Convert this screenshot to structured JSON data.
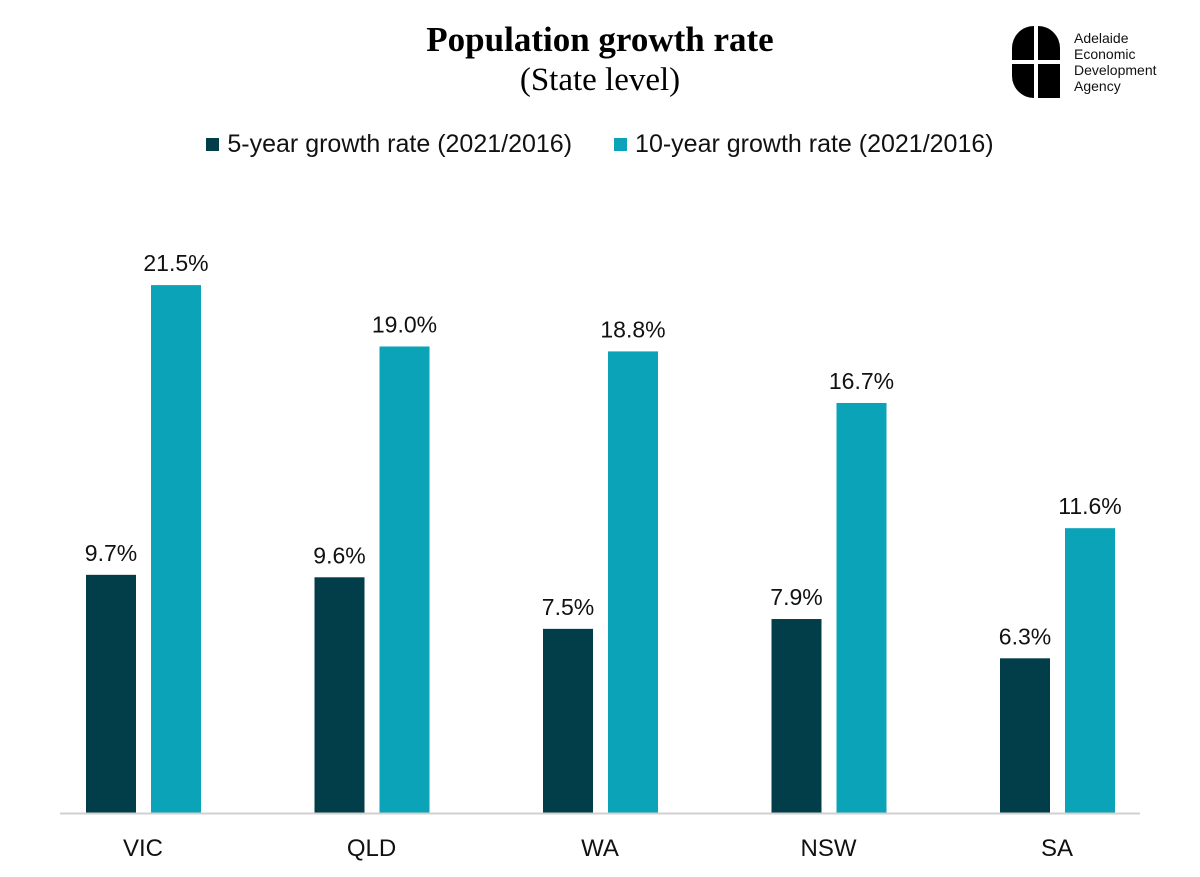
{
  "logo": {
    "lines": [
      "Adelaide",
      "Economic",
      "Development",
      "Agency"
    ]
  },
  "chart_data": {
    "type": "bar",
    "title": "Population growth rate",
    "subtitle": "(State level)",
    "categories": [
      "VIC",
      "QLD",
      "WA",
      "NSW",
      "SA"
    ],
    "series": [
      {
        "name": "5-year growth rate (2021/2016)",
        "color": "#023d4a",
        "values": [
          9.7,
          9.6,
          7.5,
          7.9,
          6.3
        ]
      },
      {
        "name": "10-year growth rate (2021/2016)",
        "color": "#0aa3b8",
        "values": [
          21.5,
          19.0,
          18.8,
          16.7,
          11.6
        ]
      }
    ],
    "data_labels": [
      [
        "9.7%",
        "9.6%",
        "7.5%",
        "7.9%",
        "6.3%"
      ],
      [
        "21.5%",
        "19.0%",
        "18.8%",
        "16.7%",
        "11.6%"
      ]
    ],
    "ylim": [
      0,
      23.5
    ],
    "grid": false,
    "legend": "top"
  }
}
